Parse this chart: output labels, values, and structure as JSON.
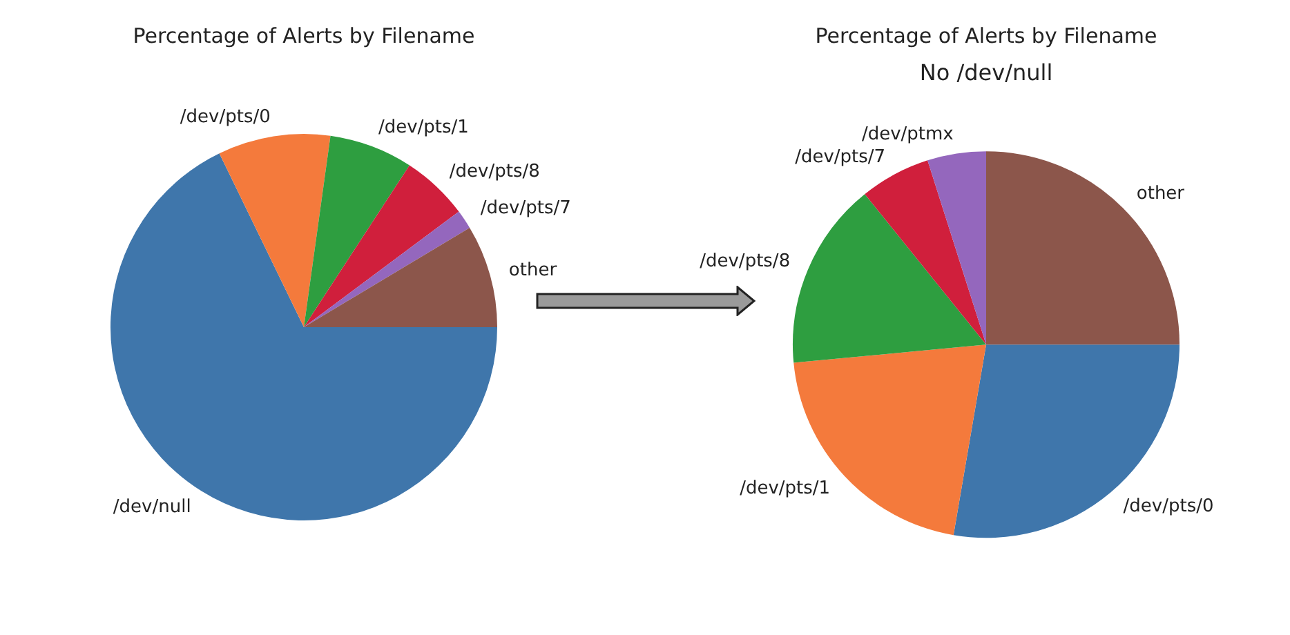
{
  "chart_data": [
    {
      "type": "pie",
      "title": "Percentage of Alerts by Filename",
      "categories": [
        "/dev/null",
        "/dev/pts/0",
        "/dev/pts/1",
        "/dev/pts/8",
        "/dev/pts/7",
        "other"
      ],
      "values": [
        67.8,
        9.4,
        7.0,
        5.6,
        1.6,
        8.6
      ],
      "colors": [
        "#3f76ab",
        "#f47a3c",
        "#2e9e40",
        "#d01f3c",
        "#9467bd",
        "#8c564b"
      ]
    },
    {
      "type": "pie",
      "title": "Percentage of Alerts by Filename",
      "subtitle": "No /dev/null",
      "categories": [
        "/dev/pts/0",
        "/dev/pts/1",
        "/dev/pts/8",
        "/dev/pts/7",
        "/dev/ptmx",
        "other"
      ],
      "values": [
        27.7,
        20.8,
        15.7,
        5.9,
        4.9,
        25.0
      ],
      "colors": [
        "#3f76ab",
        "#f47a3c",
        "#2e9e40",
        "#d01f3c",
        "#9467bd",
        "#8c564b"
      ]
    }
  ]
}
